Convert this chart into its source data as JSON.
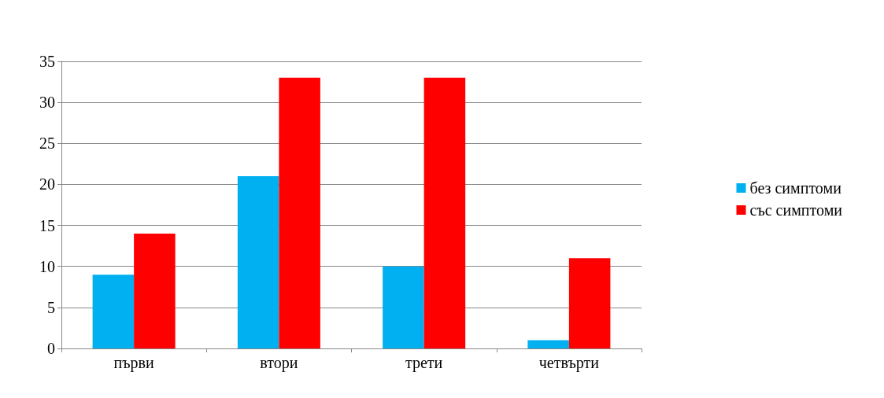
{
  "chart_data": {
    "type": "bar",
    "categories": [
      "първи",
      "втори",
      "трети",
      "четвърти"
    ],
    "series": [
      {
        "name": "без симптоми",
        "color": "#00b0f0",
        "values": [
          9,
          21,
          10,
          1
        ]
      },
      {
        "name": "със симптоми",
        "color": "#ff0000",
        "values": [
          14,
          33,
          33,
          11
        ]
      }
    ],
    "ylim": [
      0,
      35
    ],
    "yticks": [
      0,
      5,
      10,
      15,
      20,
      25,
      30,
      35
    ],
    "grid": "y",
    "legend": "right"
  }
}
